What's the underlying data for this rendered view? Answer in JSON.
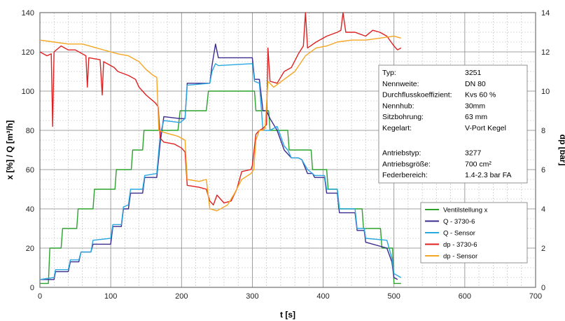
{
  "chart_data": {
    "type": "line",
    "x_axis": {
      "label": "t [s]",
      "min": 0,
      "max": 700,
      "ticks": [
        0,
        100,
        200,
        300,
        400,
        500,
        600,
        700
      ]
    },
    "y_left": {
      "label": "x [%]   /  Q [m³/h]",
      "min": 0,
      "max": 140,
      "ticks": [
        0,
        20,
        40,
        60,
        80,
        100,
        120,
        140
      ]
    },
    "y_right": {
      "label": "dp [bar]",
      "min": 0,
      "max": 14,
      "ticks": [
        0,
        2,
        4,
        6,
        8,
        10,
        12,
        14
      ]
    },
    "grid": true,
    "legend_position": "right-middle",
    "series": [
      {
        "name": "Ventilstellung x",
        "color": "#2ca02c",
        "axis": "left",
        "points": [
          [
            0,
            2
          ],
          [
            12,
            2
          ],
          [
            14,
            20
          ],
          [
            30,
            20
          ],
          [
            32,
            30
          ],
          [
            52,
            30
          ],
          [
            54,
            40
          ],
          [
            75,
            40
          ],
          [
            77,
            50
          ],
          [
            106,
            50
          ],
          [
            108,
            60
          ],
          [
            129,
            60
          ],
          [
            131,
            70
          ],
          [
            145,
            70
          ],
          [
            147,
            80
          ],
          [
            170,
            80
          ],
          [
            172,
            80
          ],
          [
            195,
            80
          ],
          [
            198,
            90
          ],
          [
            218,
            90
          ],
          [
            220,
            90
          ],
          [
            235,
            90
          ],
          [
            238,
            100
          ],
          [
            303,
            100
          ],
          [
            305,
            90
          ],
          [
            323,
            90
          ],
          [
            325,
            80
          ],
          [
            350,
            80
          ],
          [
            352,
            70
          ],
          [
            383,
            70
          ],
          [
            385,
            60
          ],
          [
            405,
            60
          ],
          [
            407,
            50
          ],
          [
            420,
            50
          ],
          [
            422,
            40
          ],
          [
            455,
            40
          ],
          [
            457,
            30
          ],
          [
            481,
            30
          ],
          [
            483,
            20
          ],
          [
            498,
            20
          ],
          [
            500,
            2
          ],
          [
            510,
            2
          ]
        ]
      },
      {
        "name": "Q - 3730-6",
        "color": "#3a2b8f",
        "axis": "left",
        "points": [
          [
            0,
            4
          ],
          [
            20,
            4
          ],
          [
            22,
            8
          ],
          [
            40,
            8
          ],
          [
            43,
            13
          ],
          [
            55,
            13
          ],
          [
            58,
            18
          ],
          [
            72,
            18
          ],
          [
            75,
            22
          ],
          [
            100,
            22
          ],
          [
            103,
            31
          ],
          [
            115,
            31
          ],
          [
            118,
            40
          ],
          [
            125,
            40
          ],
          [
            128,
            48
          ],
          [
            145,
            48
          ],
          [
            148,
            56
          ],
          [
            165,
            56
          ],
          [
            170,
            74
          ],
          [
            175,
            87
          ],
          [
            198,
            86
          ],
          [
            205,
            86
          ],
          [
            208,
            104
          ],
          [
            240,
            104
          ],
          [
            243,
            113
          ],
          [
            248,
            124
          ],
          [
            252,
            117
          ],
          [
            300,
            117
          ],
          [
            303,
            106
          ],
          [
            310,
            106
          ],
          [
            315,
            90
          ],
          [
            320,
            90
          ],
          [
            325,
            86
          ],
          [
            335,
            80
          ],
          [
            345,
            70
          ],
          [
            350,
            68
          ],
          [
            355,
            66
          ],
          [
            365,
            66
          ],
          [
            370,
            65
          ],
          [
            378,
            58
          ],
          [
            385,
            58
          ],
          [
            388,
            56
          ],
          [
            402,
            56
          ],
          [
            405,
            48
          ],
          [
            420,
            48
          ],
          [
            423,
            38
          ],
          [
            445,
            38
          ],
          [
            448,
            29
          ],
          [
            458,
            29
          ],
          [
            460,
            23
          ],
          [
            490,
            20
          ],
          [
            497,
            13
          ],
          [
            500,
            5
          ],
          [
            505,
            4
          ]
        ]
      },
      {
        "name": "Q - Sensor",
        "color": "#29a8e0",
        "axis": "left",
        "points": [
          [
            0,
            4
          ],
          [
            20,
            5
          ],
          [
            22,
            9
          ],
          [
            40,
            9
          ],
          [
            43,
            14
          ],
          [
            55,
            14
          ],
          [
            58,
            18
          ],
          [
            72,
            18
          ],
          [
            75,
            24
          ],
          [
            100,
            25
          ],
          [
            103,
            32
          ],
          [
            115,
            32
          ],
          [
            118,
            41
          ],
          [
            125,
            42
          ],
          [
            128,
            50
          ],
          [
            145,
            50
          ],
          [
            148,
            57
          ],
          [
            165,
            58
          ],
          [
            170,
            78
          ],
          [
            175,
            85
          ],
          [
            198,
            84
          ],
          [
            205,
            86
          ],
          [
            208,
            103
          ],
          [
            240,
            104
          ],
          [
            243,
            110
          ],
          [
            248,
            114
          ],
          [
            252,
            113
          ],
          [
            300,
            114
          ],
          [
            303,
            105
          ],
          [
            310,
            104
          ],
          [
            315,
            80
          ],
          [
            320,
            80
          ],
          [
            325,
            80
          ],
          [
            335,
            82
          ],
          [
            345,
            72
          ],
          [
            350,
            70
          ],
          [
            355,
            66
          ],
          [
            365,
            66
          ],
          [
            370,
            65
          ],
          [
            378,
            60
          ],
          [
            385,
            58
          ],
          [
            388,
            57
          ],
          [
            402,
            57
          ],
          [
            405,
            50
          ],
          [
            420,
            50
          ],
          [
            423,
            40
          ],
          [
            445,
            40
          ],
          [
            448,
            30
          ],
          [
            458,
            30
          ],
          [
            460,
            25
          ],
          [
            490,
            24
          ],
          [
            497,
            15
          ],
          [
            500,
            7
          ],
          [
            510,
            5
          ]
        ]
      },
      {
        "name": "dp - 3730-6",
        "color": "#e02020",
        "axis": "right",
        "points": [
          [
            0,
            12.0
          ],
          [
            10,
            11.8
          ],
          [
            16,
            11.9
          ],
          [
            18,
            8.2
          ],
          [
            20,
            12.0
          ],
          [
            30,
            12.3
          ],
          [
            40,
            12.1
          ],
          [
            50,
            12.1
          ],
          [
            65,
            11.8
          ],
          [
            67,
            10.2
          ],
          [
            69,
            11.7
          ],
          [
            85,
            11.6
          ],
          [
            88,
            9.8
          ],
          [
            90,
            11.5
          ],
          [
            105,
            11.2
          ],
          [
            110,
            11.0
          ],
          [
            125,
            10.8
          ],
          [
            135,
            10.6
          ],
          [
            140,
            10.2
          ],
          [
            145,
            10.0
          ],
          [
            150,
            9.8
          ],
          [
            163,
            9.4
          ],
          [
            167,
            9.2
          ],
          [
            170,
            7.6
          ],
          [
            175,
            7.4
          ],
          [
            190,
            7.3
          ],
          [
            200,
            7.1
          ],
          [
            205,
            6.9
          ],
          [
            208,
            5.2
          ],
          [
            225,
            5.1
          ],
          [
            235,
            5.0
          ],
          [
            240,
            4.4
          ],
          [
            245,
            4.2
          ],
          [
            250,
            4.7
          ],
          [
            260,
            4.3
          ],
          [
            270,
            4.4
          ],
          [
            278,
            5.0
          ],
          [
            285,
            5.9
          ],
          [
            298,
            6.0
          ],
          [
            300,
            6.2
          ],
          [
            305,
            7.8
          ],
          [
            310,
            8.0
          ],
          [
            315,
            8.1
          ],
          [
            320,
            8.3
          ],
          [
            322,
            12.2
          ],
          [
            325,
            10.5
          ],
          [
            335,
            10.4
          ],
          [
            345,
            11.0
          ],
          [
            355,
            11.2
          ],
          [
            365,
            11.9
          ],
          [
            372,
            12.3
          ],
          [
            375,
            14.0
          ],
          [
            378,
            12.2
          ],
          [
            390,
            12.5
          ],
          [
            405,
            12.8
          ],
          [
            420,
            13.0
          ],
          [
            425,
            13.1
          ],
          [
            428,
            14.0
          ],
          [
            432,
            13.0
          ],
          [
            445,
            13.0
          ],
          [
            460,
            12.8
          ],
          [
            470,
            13.1
          ],
          [
            480,
            13.0
          ],
          [
            490,
            12.8
          ],
          [
            500,
            12.3
          ],
          [
            505,
            12.1
          ],
          [
            510,
            12.2
          ]
        ]
      },
      {
        "name": "dp - Sensor",
        "color": "#f5a623",
        "axis": "right",
        "points": [
          [
            0,
            12.6
          ],
          [
            20,
            12.5
          ],
          [
            40,
            12.4
          ],
          [
            60,
            12.4
          ],
          [
            80,
            12.2
          ],
          [
            100,
            12.0
          ],
          [
            110,
            11.9
          ],
          [
            125,
            11.8
          ],
          [
            140,
            11.5
          ],
          [
            150,
            11.1
          ],
          [
            160,
            10.8
          ],
          [
            165,
            10.7
          ],
          [
            168,
            8.0
          ],
          [
            175,
            7.9
          ],
          [
            195,
            7.7
          ],
          [
            205,
            7.5
          ],
          [
            208,
            5.5
          ],
          [
            225,
            5.4
          ],
          [
            235,
            5.5
          ],
          [
            240,
            4.0
          ],
          [
            250,
            3.9
          ],
          [
            265,
            4.2
          ],
          [
            275,
            4.8
          ],
          [
            285,
            5.5
          ],
          [
            298,
            5.8
          ],
          [
            302,
            6.0
          ],
          [
            305,
            7.5
          ],
          [
            310,
            8.0
          ],
          [
            315,
            8.0
          ],
          [
            318,
            8.1
          ],
          [
            322,
            10.5
          ],
          [
            330,
            10.2
          ],
          [
            345,
            10.6
          ],
          [
            360,
            11.0
          ],
          [
            375,
            11.8
          ],
          [
            390,
            12.2
          ],
          [
            405,
            12.3
          ],
          [
            420,
            12.5
          ],
          [
            440,
            12.6
          ],
          [
            460,
            12.6
          ],
          [
            480,
            12.7
          ],
          [
            500,
            12.8
          ],
          [
            510,
            12.7
          ]
        ]
      }
    ],
    "info_box": [
      {
        "label": "Typ:",
        "value": "3251"
      },
      {
        "label": "Nennweite:",
        "value": "DN 80"
      },
      {
        "label": "Durchflusskoeffizient:",
        "value": "Kvs 60 %"
      },
      {
        "label": "Nennhub:",
        "value": "30mm"
      },
      {
        "label": "Sitzbohrung:",
        "value": "63 mm"
      },
      {
        "label": "Kegelart:",
        "value": "V-Port Kegel"
      },
      {
        "label": "",
        "value": ""
      },
      {
        "label": "Antriebstyp:",
        "value": "3277"
      },
      {
        "label": "Antriebsgröße:",
        "value": "700 cm²"
      },
      {
        "label": "Federbereich:",
        "value": "1.4-2.3 bar FA"
      }
    ]
  }
}
